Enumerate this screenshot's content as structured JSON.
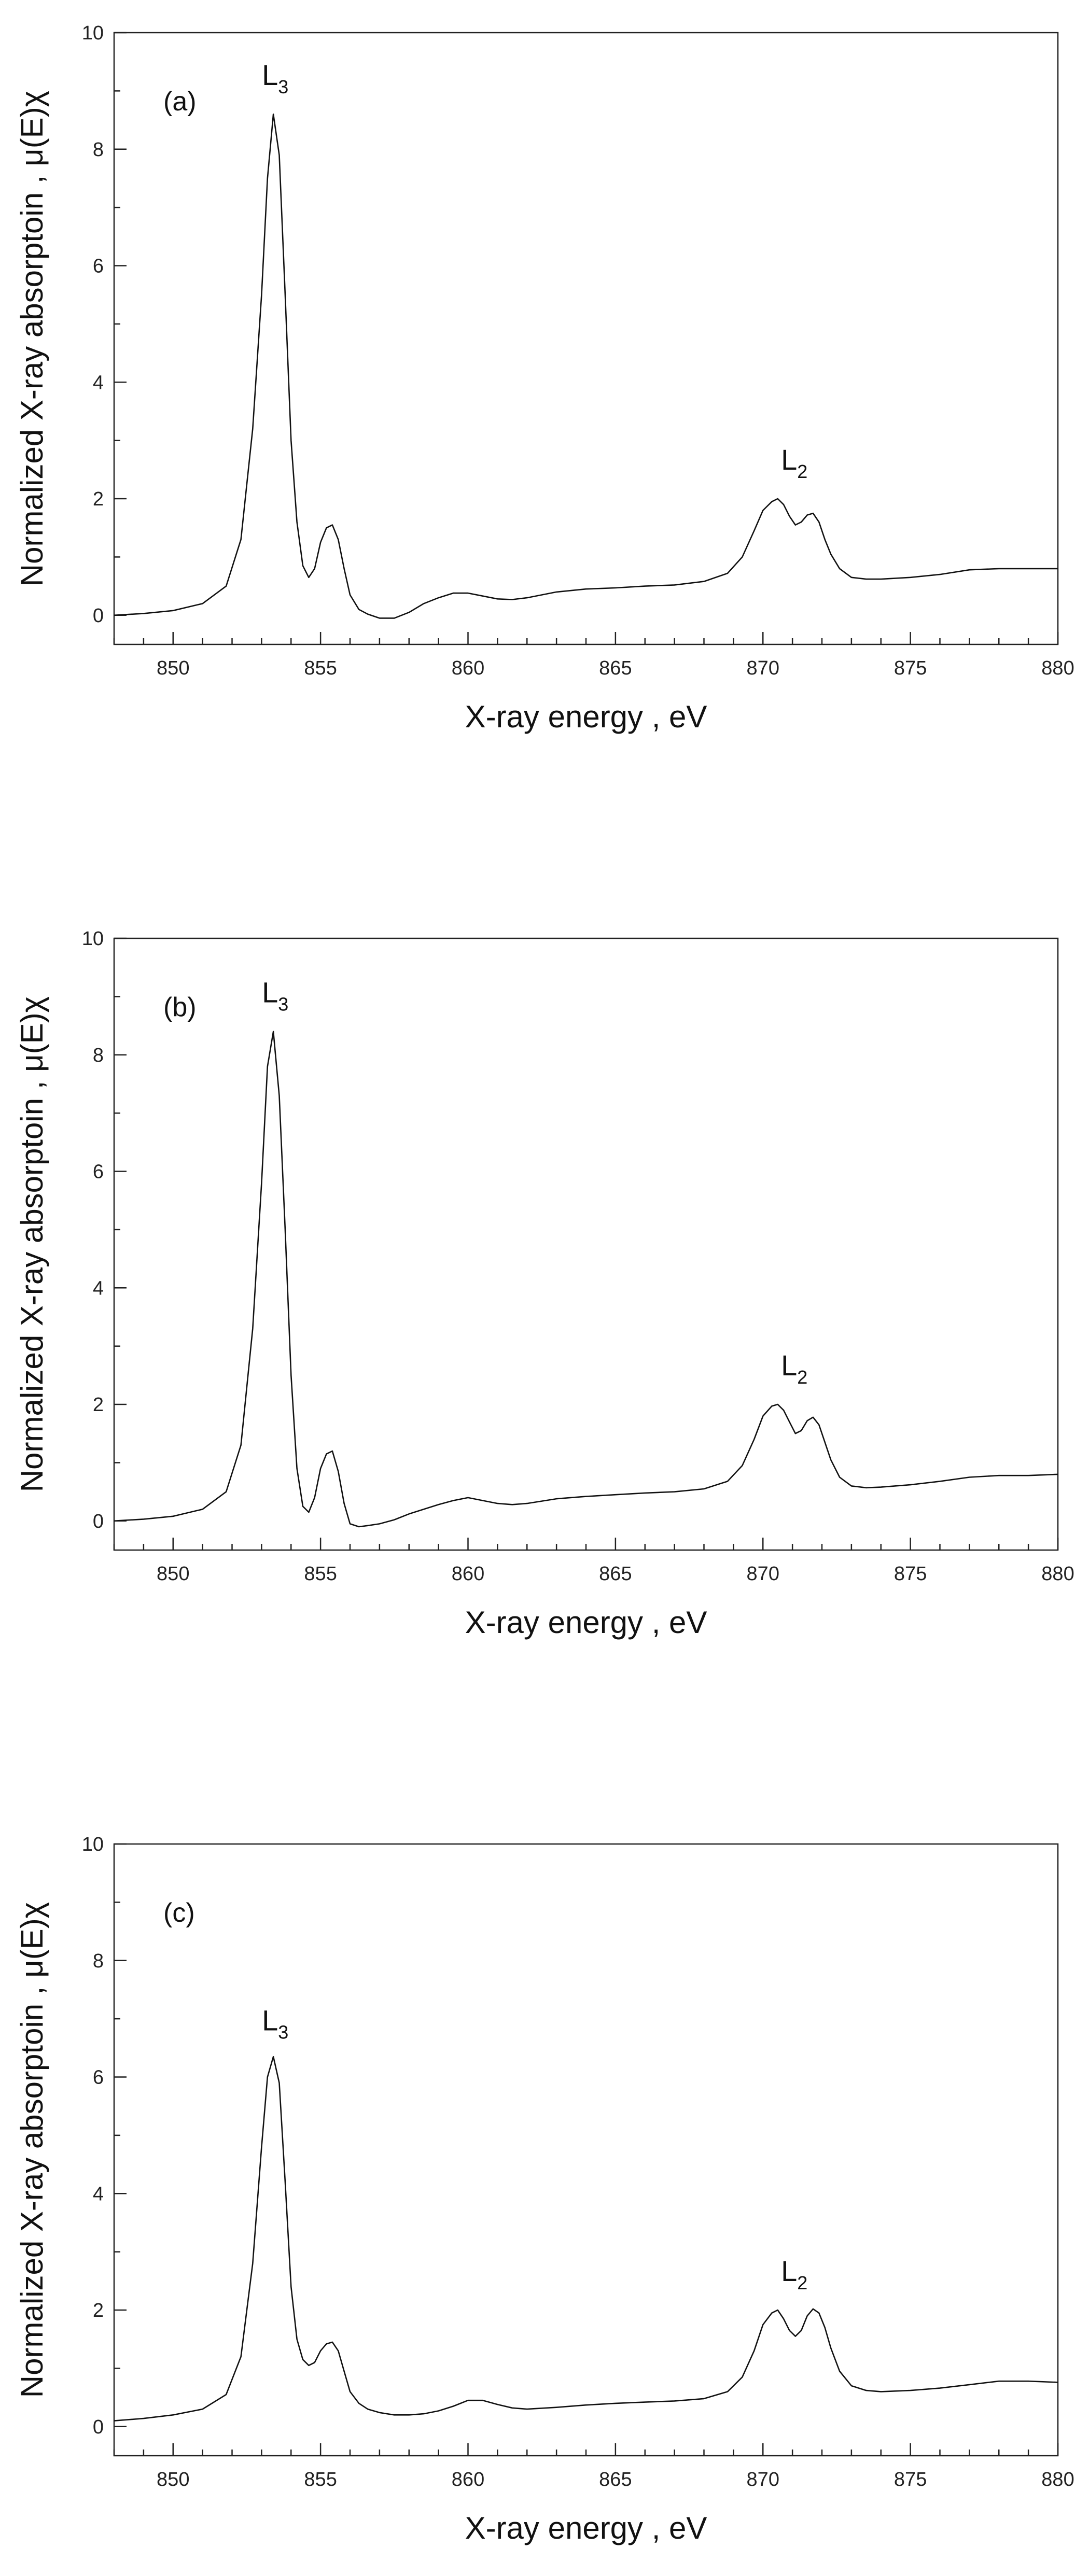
{
  "chart_data": [
    {
      "type": "line",
      "panel": "(a)",
      "xlabel": "X-ray energy , eV",
      "ylabel": "Normalized X-ray absorptoin , μ(E)χ",
      "xlim": [
        848,
        880
      ],
      "ylim": [
        -0.5,
        10
      ],
      "xticks": [
        850,
        855,
        860,
        865,
        870,
        875,
        880
      ],
      "yticks": [
        0,
        2,
        4,
        6,
        8,
        10
      ],
      "annotations": [
        {
          "text": "L",
          "sub": "3",
          "x": 853.4,
          "y": 9.1
        },
        {
          "text": "L",
          "sub": "2",
          "x": 871.0,
          "y": 2.5
        }
      ],
      "series": [
        {
          "name": "spectrum-a",
          "x": [
            848,
            849,
            850,
            851,
            851.8,
            852.3,
            852.7,
            853.0,
            853.2,
            853.4,
            853.6,
            853.8,
            854.0,
            854.2,
            854.4,
            854.6,
            854.8,
            855.0,
            855.2,
            855.4,
            855.6,
            855.8,
            856.0,
            856.3,
            856.6,
            857.0,
            857.5,
            858.0,
            858.5,
            859.0,
            859.5,
            860.0,
            860.5,
            861.0,
            861.5,
            862.0,
            863.0,
            864.0,
            865.0,
            866.0,
            867.0,
            868.0,
            868.8,
            869.3,
            869.7,
            870.0,
            870.3,
            870.5,
            870.7,
            870.9,
            871.1,
            871.3,
            871.5,
            871.7,
            871.9,
            872.1,
            872.3,
            872.6,
            873.0,
            873.5,
            874.0,
            875.0,
            876.0,
            877.0,
            878.0,
            879.0,
            880.0
          ],
          "y": [
            0.0,
            0.03,
            0.08,
            0.2,
            0.5,
            1.3,
            3.2,
            5.5,
            7.5,
            8.6,
            7.9,
            5.5,
            3.0,
            1.6,
            0.85,
            0.65,
            0.8,
            1.25,
            1.5,
            1.55,
            1.3,
            0.8,
            0.35,
            0.1,
            0.02,
            -0.05,
            -0.05,
            0.05,
            0.2,
            0.3,
            0.38,
            0.38,
            0.33,
            0.28,
            0.27,
            0.3,
            0.4,
            0.45,
            0.47,
            0.5,
            0.52,
            0.58,
            0.72,
            1.0,
            1.45,
            1.8,
            1.95,
            2.0,
            1.9,
            1.7,
            1.55,
            1.6,
            1.72,
            1.75,
            1.6,
            1.3,
            1.05,
            0.8,
            0.65,
            0.62,
            0.62,
            0.65,
            0.7,
            0.78,
            0.8,
            0.8,
            0.8
          ]
        }
      ]
    },
    {
      "type": "line",
      "panel": "(b)",
      "xlabel": "X-ray energy , eV",
      "ylabel": "Normalized X-ray absorptoin , μ(E)χ",
      "xlim": [
        848,
        880
      ],
      "ylim": [
        -0.5,
        10
      ],
      "xticks": [
        850,
        855,
        860,
        865,
        870,
        875,
        880
      ],
      "yticks": [
        0,
        2,
        4,
        6,
        8,
        10
      ],
      "annotations": [
        {
          "text": "L",
          "sub": "3",
          "x": 853.4,
          "y": 8.9
        },
        {
          "text": "L",
          "sub": "2",
          "x": 871.0,
          "y": 2.5
        }
      ],
      "series": [
        {
          "name": "spectrum-b",
          "x": [
            848,
            849,
            850,
            851,
            851.8,
            852.3,
            852.7,
            853.0,
            853.2,
            853.4,
            853.6,
            853.8,
            854.0,
            854.2,
            854.4,
            854.6,
            854.8,
            855.0,
            855.2,
            855.4,
            855.6,
            855.8,
            856.0,
            856.3,
            856.6,
            857.0,
            857.5,
            858.0,
            858.5,
            859.0,
            859.5,
            860.0,
            860.5,
            861.0,
            861.5,
            862.0,
            863.0,
            864.0,
            865.0,
            866.0,
            867.0,
            868.0,
            868.8,
            869.3,
            869.7,
            870.0,
            870.3,
            870.5,
            870.7,
            870.9,
            871.1,
            871.3,
            871.5,
            871.7,
            871.9,
            872.1,
            872.3,
            872.6,
            873.0,
            873.5,
            874.0,
            875.0,
            876.0,
            877.0,
            878.0,
            879.0,
            880.0
          ],
          "y": [
            0.0,
            0.03,
            0.08,
            0.2,
            0.5,
            1.3,
            3.3,
            5.8,
            7.8,
            8.4,
            7.3,
            5.0,
            2.5,
            0.9,
            0.25,
            0.15,
            0.4,
            0.9,
            1.15,
            1.2,
            0.85,
            0.3,
            -0.05,
            -0.1,
            -0.08,
            -0.05,
            0.02,
            0.12,
            0.2,
            0.28,
            0.35,
            0.4,
            0.35,
            0.3,
            0.28,
            0.3,
            0.38,
            0.42,
            0.45,
            0.48,
            0.5,
            0.55,
            0.68,
            0.95,
            1.4,
            1.8,
            1.97,
            2.0,
            1.9,
            1.7,
            1.5,
            1.55,
            1.72,
            1.78,
            1.65,
            1.35,
            1.05,
            0.75,
            0.6,
            0.57,
            0.58,
            0.62,
            0.68,
            0.75,
            0.78,
            0.78,
            0.8
          ]
        }
      ]
    },
    {
      "type": "line",
      "panel": "(c)",
      "xlabel": "X-ray energy , eV",
      "ylabel": "Normalized X-ray absorptoin , μ(E)χ",
      "xlim": [
        848,
        880
      ],
      "ylim": [
        -0.5,
        10
      ],
      "xticks": [
        850,
        855,
        860,
        865,
        870,
        875,
        880
      ],
      "yticks": [
        0,
        2,
        4,
        6,
        8,
        10
      ],
      "annotations": [
        {
          "text": "L",
          "sub": "3",
          "x": 853.4,
          "y": 6.8
        },
        {
          "text": "L",
          "sub": "2",
          "x": 871.0,
          "y": 2.5
        }
      ],
      "series": [
        {
          "name": "spectrum-c",
          "x": [
            848,
            849,
            850,
            851,
            851.8,
            852.3,
            852.7,
            853.0,
            853.2,
            853.4,
            853.6,
            853.8,
            854.0,
            854.2,
            854.4,
            854.6,
            854.8,
            855.0,
            855.2,
            855.4,
            855.6,
            855.8,
            856.0,
            856.3,
            856.6,
            857.0,
            857.5,
            858.0,
            858.5,
            859.0,
            859.5,
            860.0,
            860.5,
            861.0,
            861.5,
            862.0,
            863.0,
            864.0,
            865.0,
            866.0,
            867.0,
            868.0,
            868.8,
            869.3,
            869.7,
            870.0,
            870.3,
            870.5,
            870.7,
            870.9,
            871.1,
            871.3,
            871.5,
            871.7,
            871.9,
            872.1,
            872.3,
            872.6,
            873.0,
            873.5,
            874.0,
            875.0,
            876.0,
            877.0,
            878.0,
            879.0,
            880.0
          ],
          "y": [
            0.1,
            0.14,
            0.2,
            0.3,
            0.55,
            1.2,
            2.8,
            4.8,
            6.0,
            6.35,
            5.9,
            4.2,
            2.4,
            1.5,
            1.15,
            1.05,
            1.1,
            1.3,
            1.42,
            1.45,
            1.3,
            0.95,
            0.6,
            0.4,
            0.3,
            0.24,
            0.2,
            0.2,
            0.22,
            0.27,
            0.35,
            0.45,
            0.45,
            0.38,
            0.32,
            0.3,
            0.33,
            0.37,
            0.4,
            0.42,
            0.44,
            0.48,
            0.6,
            0.85,
            1.3,
            1.75,
            1.95,
            2.0,
            1.85,
            1.65,
            1.55,
            1.65,
            1.9,
            2.02,
            1.95,
            1.7,
            1.35,
            0.95,
            0.7,
            0.62,
            0.6,
            0.62,
            0.66,
            0.72,
            0.78,
            0.78,
            0.76
          ]
        }
      ]
    }
  ]
}
